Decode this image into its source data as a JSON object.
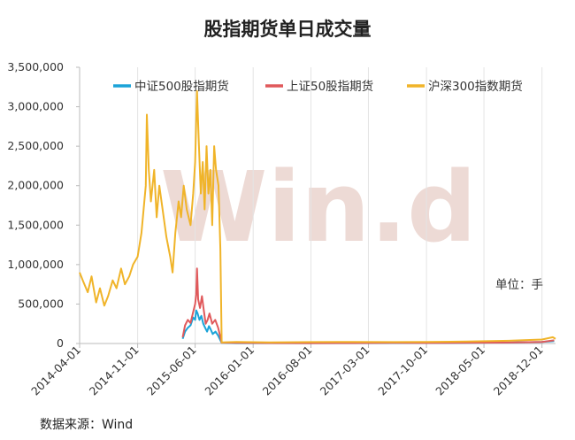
{
  "chart_data": {
    "type": "line",
    "title": "股指期货单日成交量",
    "xlabel": "",
    "ylabel": "",
    "ylim": [
      0,
      3500000
    ],
    "y_ticks": [
      "3,500,000",
      "3,000,000",
      "2,500,000",
      "2,000,000",
      "1,500,000",
      "1,000,000",
      "500,000",
      "0"
    ],
    "x_ticks": [
      "2014-04-01",
      "2014-11-01",
      "2015-06-01",
      "2016-01-01",
      "2016-08-01",
      "2017-03-01",
      "2017-10-01",
      "2018-05-01",
      "2018-12-01"
    ],
    "x_range": [
      "2014-04-01",
      "2019-01-20"
    ],
    "grid": "vertical",
    "legend_position": "top",
    "unit_note": "单位：手",
    "source_note": "数据来源：Wind",
    "watermark": "Win.d",
    "series": [
      {
        "name": "中证500股指期货",
        "color": "#1ba3d8",
        "points": [
          [
            "2015-04-16",
            60000
          ],
          [
            "2015-04-25",
            150000
          ],
          [
            "2015-05-05",
            200000
          ],
          [
            "2015-05-15",
            230000
          ],
          [
            "2015-05-25",
            330000
          ],
          [
            "2015-06-01",
            300000
          ],
          [
            "2015-06-05",
            420000
          ],
          [
            "2015-06-10",
            380000
          ],
          [
            "2015-06-17",
            300000
          ],
          [
            "2015-06-24",
            350000
          ],
          [
            "2015-07-01",
            250000
          ],
          [
            "2015-07-08",
            200000
          ],
          [
            "2015-07-15",
            150000
          ],
          [
            "2015-07-22",
            220000
          ],
          [
            "2015-07-28",
            180000
          ],
          [
            "2015-08-05",
            120000
          ],
          [
            "2015-08-15",
            150000
          ],
          [
            "2015-08-25",
            100000
          ],
          [
            "2015-09-07",
            8000
          ],
          [
            "2015-11-01",
            5000
          ],
          [
            "2016-03-01",
            4000
          ],
          [
            "2016-08-01",
            4000
          ],
          [
            "2017-01-01",
            5000
          ],
          [
            "2017-06-01",
            6000
          ],
          [
            "2017-10-01",
            6000
          ],
          [
            "2018-03-01",
            8000
          ],
          [
            "2018-08-01",
            12000
          ],
          [
            "2018-12-01",
            20000
          ],
          [
            "2019-01-15",
            30000
          ]
        ]
      },
      {
        "name": "上证50股指期货",
        "color": "#e0595b",
        "points": [
          [
            "2015-04-16",
            80000
          ],
          [
            "2015-04-25",
            230000
          ],
          [
            "2015-05-05",
            300000
          ],
          [
            "2015-05-15",
            260000
          ],
          [
            "2015-05-25",
            400000
          ],
          [
            "2015-06-01",
            500000
          ],
          [
            "2015-06-05",
            620000
          ],
          [
            "2015-06-08",
            950000
          ],
          [
            "2015-06-12",
            560000
          ],
          [
            "2015-06-19",
            450000
          ],
          [
            "2015-06-26",
            600000
          ],
          [
            "2015-07-03",
            420000
          ],
          [
            "2015-07-10",
            250000
          ],
          [
            "2015-07-17",
            300000
          ],
          [
            "2015-07-24",
            380000
          ],
          [
            "2015-08-03",
            250000
          ],
          [
            "2015-08-14",
            300000
          ],
          [
            "2015-08-25",
            200000
          ],
          [
            "2015-09-07",
            10000
          ],
          [
            "2015-11-01",
            8000
          ],
          [
            "2016-03-01",
            6000
          ],
          [
            "2016-08-01",
            5000
          ],
          [
            "2017-01-01",
            6000
          ],
          [
            "2017-06-01",
            8000
          ],
          [
            "2017-10-01",
            7000
          ],
          [
            "2018-03-01",
            10000
          ],
          [
            "2018-08-01",
            12000
          ],
          [
            "2018-12-01",
            20000
          ],
          [
            "2019-01-15",
            40000
          ]
        ]
      },
      {
        "name": "沪深300指数期货",
        "color": "#f0b429",
        "points": [
          [
            "2014-04-01",
            900000
          ],
          [
            "2014-04-15",
            780000
          ],
          [
            "2014-05-01",
            650000
          ],
          [
            "2014-05-15",
            850000
          ],
          [
            "2014-06-01",
            520000
          ],
          [
            "2014-06-15",
            700000
          ],
          [
            "2014-07-01",
            480000
          ],
          [
            "2014-07-15",
            600000
          ],
          [
            "2014-08-01",
            800000
          ],
          [
            "2014-08-15",
            700000
          ],
          [
            "2014-09-01",
            950000
          ],
          [
            "2014-09-15",
            750000
          ],
          [
            "2014-10-01",
            850000
          ],
          [
            "2014-10-15",
            1000000
          ],
          [
            "2014-11-01",
            1100000
          ],
          [
            "2014-11-15",
            1400000
          ],
          [
            "2014-12-01",
            2000000
          ],
          [
            "2014-12-05",
            2900000
          ],
          [
            "2014-12-12",
            2200000
          ],
          [
            "2014-12-20",
            1800000
          ],
          [
            "2015-01-01",
            2200000
          ],
          [
            "2015-01-10",
            1600000
          ],
          [
            "2015-01-20",
            2000000
          ],
          [
            "2015-02-01",
            1700000
          ],
          [
            "2015-02-15",
            1350000
          ],
          [
            "2015-03-01",
            1100000
          ],
          [
            "2015-03-10",
            900000
          ],
          [
            "2015-03-20",
            1400000
          ],
          [
            "2015-04-01",
            1800000
          ],
          [
            "2015-04-10",
            1600000
          ],
          [
            "2015-04-20",
            2000000
          ],
          [
            "2015-05-01",
            1700000
          ],
          [
            "2015-05-15",
            1500000
          ],
          [
            "2015-05-25",
            1900000
          ],
          [
            "2015-06-01",
            2300000
          ],
          [
            "2015-06-08",
            3200000
          ],
          [
            "2015-06-15",
            2500000
          ],
          [
            "2015-06-22",
            1900000
          ],
          [
            "2015-06-29",
            2300000
          ],
          [
            "2015-07-06",
            1700000
          ],
          [
            "2015-07-13",
            2500000
          ],
          [
            "2015-07-20",
            1900000
          ],
          [
            "2015-07-27",
            2200000
          ],
          [
            "2015-08-03",
            1500000
          ],
          [
            "2015-08-10",
            2500000
          ],
          [
            "2015-08-17",
            2200000
          ],
          [
            "2015-08-26",
            2000000
          ],
          [
            "2015-09-02",
            1200000
          ],
          [
            "2015-09-07",
            15000
          ],
          [
            "2015-11-01",
            20000
          ],
          [
            "2016-03-01",
            15000
          ],
          [
            "2016-08-01",
            18000
          ],
          [
            "2017-01-01",
            20000
          ],
          [
            "2017-06-01",
            18000
          ],
          [
            "2017-10-01",
            20000
          ],
          [
            "2018-03-01",
            25000
          ],
          [
            "2018-08-01",
            35000
          ],
          [
            "2018-12-01",
            50000
          ],
          [
            "2019-01-10",
            80000
          ],
          [
            "2019-01-20",
            60000
          ]
        ]
      }
    ]
  }
}
